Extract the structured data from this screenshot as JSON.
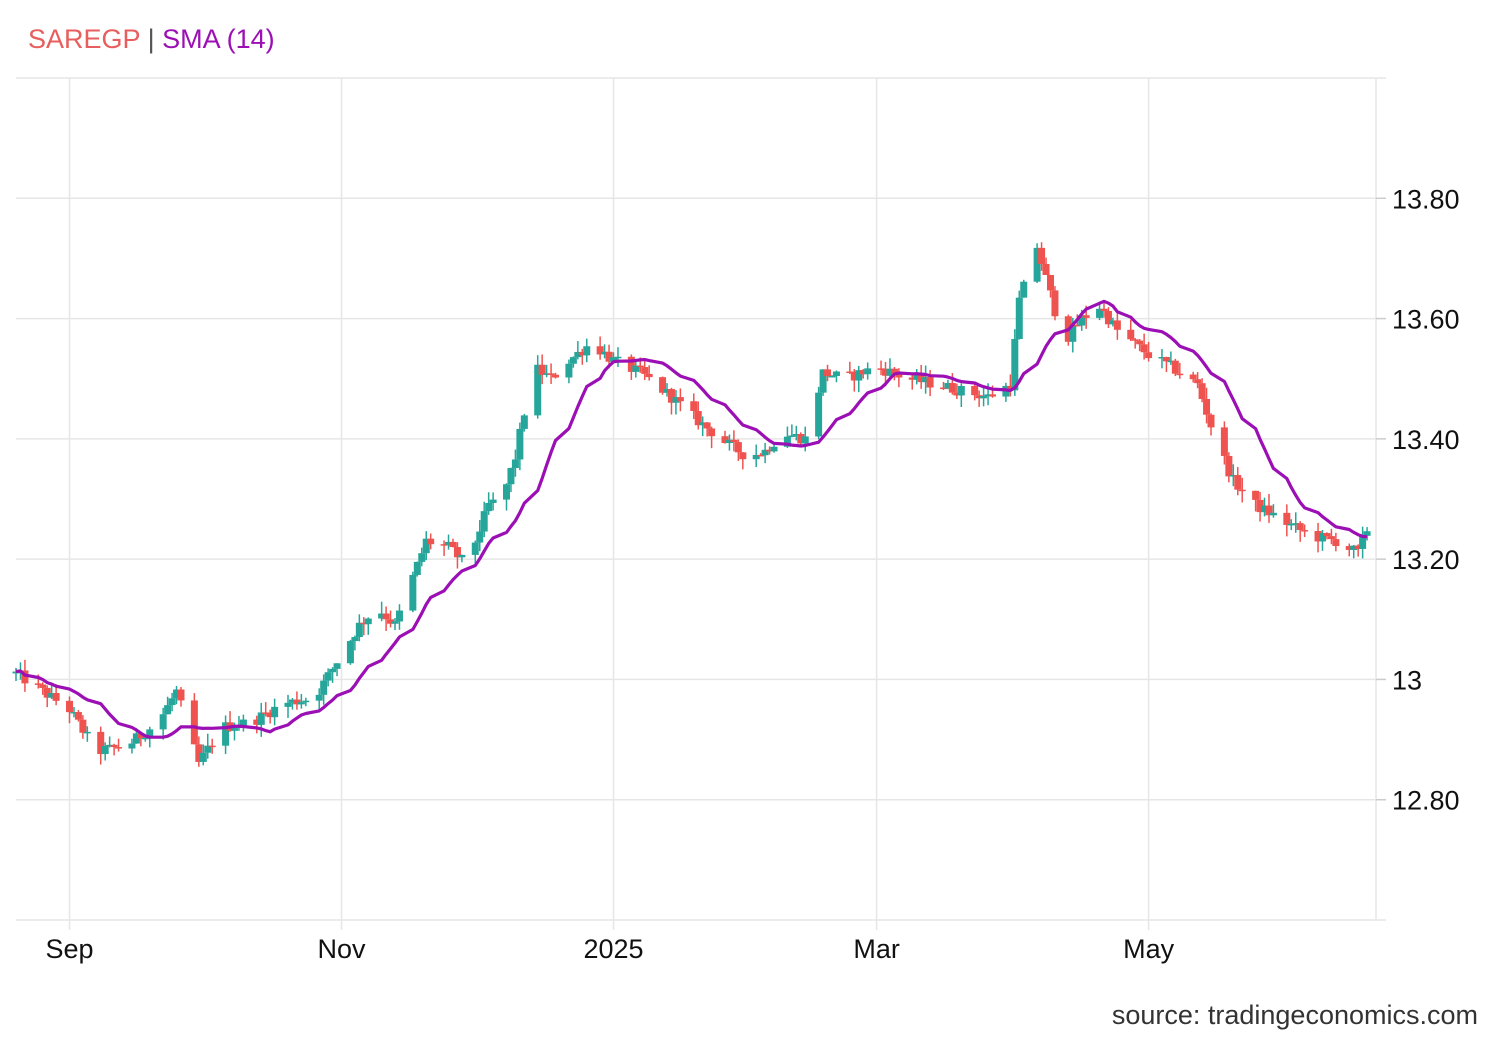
{
  "legend": {
    "symbol": "SAREGP",
    "separator": "|",
    "indicator": "SMA (14)"
  },
  "source": "source: tradingeconomics.com",
  "colors": {
    "up": "#26a69a",
    "down": "#ef5350",
    "sma": "#9b0fb5",
    "grid": "#e6e6e6"
  },
  "chart_data": {
    "type": "candlestick",
    "y_axis": {
      "min": 12.6,
      "max": 14.0,
      "ticks": [
        12.8,
        13.0,
        13.2,
        13.4,
        13.6,
        13.8
      ],
      "tick_labels": [
        "12.80",
        "13",
        "13.20",
        "13.40",
        "13.60",
        "13.80"
      ],
      "position": "right"
    },
    "x_axis": {
      "start": "2024-08-20",
      "end": "2025-06-21",
      "ticks": [
        {
          "date": "2024-09-01",
          "label": "Sep"
        },
        {
          "date": "2024-11-01",
          "label": "Nov"
        },
        {
          "date": "2025-01-01",
          "label": "2025"
        },
        {
          "date": "2025-03-01",
          "label": "Mar"
        },
        {
          "date": "2025-05-01",
          "label": "May"
        }
      ]
    },
    "grid": true,
    "series": [
      {
        "name": "SAREGP",
        "anchors": [
          [
            "2024-08-20",
            13.01
          ],
          [
            "2024-09-01",
            12.95
          ],
          [
            "2024-09-07",
            12.88
          ],
          [
            "2024-09-14",
            12.89
          ],
          [
            "2024-09-21",
            12.93
          ],
          [
            "2024-09-25",
            12.98
          ],
          [
            "2024-09-30",
            12.86
          ],
          [
            "2024-10-05",
            12.92
          ],
          [
            "2024-10-12",
            12.93
          ],
          [
            "2024-10-19",
            12.96
          ],
          [
            "2024-10-26",
            12.97
          ],
          [
            "2024-10-31",
            13.03
          ],
          [
            "2024-11-05",
            13.09
          ],
          [
            "2024-11-09",
            13.12
          ],
          [
            "2024-11-13",
            13.09
          ],
          [
            "2024-11-20",
            13.23
          ],
          [
            "2024-11-25",
            13.22
          ],
          [
            "2024-11-29",
            13.19
          ],
          [
            "2024-12-04",
            13.29
          ],
          [
            "2024-12-07",
            13.3
          ],
          [
            "2024-12-10",
            13.37
          ],
          [
            "2024-12-14",
            13.52
          ],
          [
            "2024-12-18",
            13.5
          ],
          [
            "2024-12-22",
            13.53
          ],
          [
            "2024-12-27",
            13.56
          ],
          [
            "2025-01-01",
            13.53
          ],
          [
            "2025-01-07",
            13.51
          ],
          [
            "2025-01-14",
            13.47
          ],
          [
            "2025-01-20",
            13.43
          ],
          [
            "2025-01-25",
            13.4
          ],
          [
            "2025-01-31",
            13.37
          ],
          [
            "2025-02-04",
            13.38
          ],
          [
            "2025-02-08",
            13.41
          ],
          [
            "2025-02-13",
            13.4
          ],
          [
            "2025-02-17",
            13.51
          ],
          [
            "2025-02-22",
            13.5
          ],
          [
            "2025-03-01",
            13.52
          ],
          [
            "2025-03-08",
            13.5
          ],
          [
            "2025-03-15",
            13.49
          ],
          [
            "2025-03-20",
            13.48
          ],
          [
            "2025-03-26",
            13.47
          ],
          [
            "2025-03-31",
            13.49
          ],
          [
            "2025-04-02",
            13.63
          ],
          [
            "2025-04-06",
            13.72
          ],
          [
            "2025-04-09",
            13.64
          ],
          [
            "2025-04-12",
            13.56
          ],
          [
            "2025-04-16",
            13.6
          ],
          [
            "2025-04-20",
            13.62
          ],
          [
            "2025-04-24",
            13.58
          ],
          [
            "2025-05-01",
            13.54
          ],
          [
            "2025-05-06",
            13.52
          ],
          [
            "2025-05-12",
            13.49
          ],
          [
            "2025-05-16",
            13.4
          ],
          [
            "2025-05-20",
            13.33
          ],
          [
            "2025-05-25",
            13.29
          ],
          [
            "2025-06-01",
            13.26
          ],
          [
            "2025-06-06",
            13.24
          ],
          [
            "2025-06-12",
            13.23
          ],
          [
            "2025-06-17",
            13.21
          ],
          [
            "2025-06-20",
            13.27
          ]
        ]
      }
    ]
  }
}
